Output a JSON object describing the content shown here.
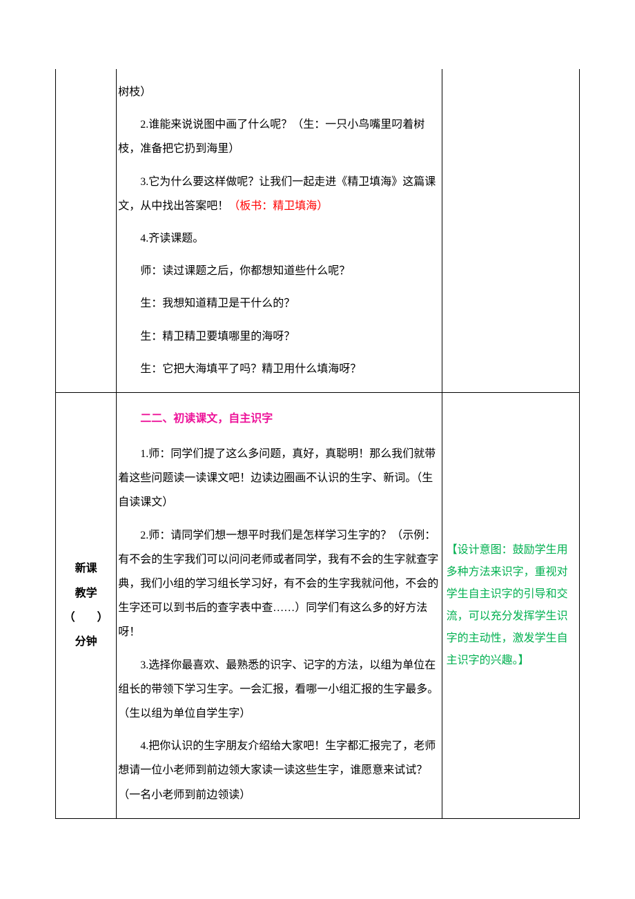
{
  "row1": {
    "col2": {
      "p1": "树枝）",
      "p2": "2.谁能来说说图中画了什么呢？（生：一只小鸟嘴里叼着树枝，准备把它扔到海里）",
      "p3_a": "3.它为什么要这样做呢？让我们一起走进《精卫填海》这篇课文，从中找出答案吧！",
      "p3_b": "（板书：精卫填海）",
      "p4": "4.齐读课题。",
      "p5": "师：读过课题之后，你都想知道些什么呢？",
      "p6": "生：我想知道精卫是干什么的？",
      "p7": "生：精卫精卫要填哪里的海呀？",
      "p8": "生：它把大海填平了吗？精卫用什么填海呀？"
    }
  },
  "row2": {
    "col1": {
      "line1": "新课",
      "line2": "教学",
      "line3": "（　　）",
      "line4": "分钟"
    },
    "col2": {
      "title": "二二、初读课文，自主识字",
      "p1": "1.师：同学们提了这么多问题，真好，真聪明！那么我们就带着这些问题读一读课文吧！边读边圈画不认识的生字、新词。（生自读课文）",
      "p2": "2.师：请同学们想一想平时我们是怎样学习生字的？（示例：有不会的生字我们可以问问老师或者同学，我有不会的生字就查字典，我们小组的学习组长学习好，有不会的生字我就问他，不会的生字还可以到书后的查字表中查……）同学们有这么多的好方法呀！",
      "p3": "3.选择你最喜欢、最熟悉的识字、记字的方法，以组为单位在组长的带领下学习生字。一会汇报，看哪一小组汇报的生字最多。（生以组为单位自学生字）",
      "p4": "4.把你认识的生字朋友介绍给大家吧！生字都汇报完了，老师想请一位小老师到前边领大家读一读这些生字，谁愿意来试试？（一名小老师到前边领读）"
    },
    "col3": {
      "note": "【设计意图：鼓励学生用多种方法来识字，重视对学生自主识字的引导和交流，可以充分发挥学生识字的主动性，激发学生自主识字的兴趣。】"
    }
  },
  "colors": {
    "red": "#ff0000",
    "magenta": "#ed1299",
    "green": "#00b050",
    "black": "#000000",
    "background": "#ffffff"
  }
}
